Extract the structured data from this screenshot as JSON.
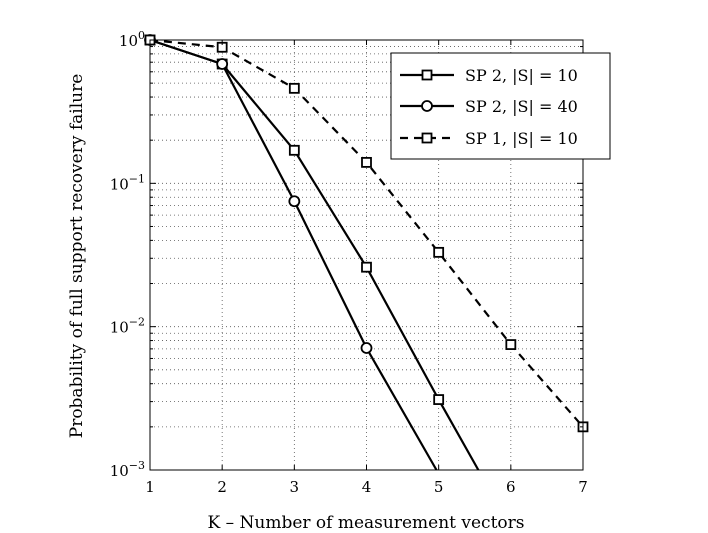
{
  "chart_data": {
    "type": "line",
    "xlabel": "K – Number of measurement vectors",
    "ylabel": "Probability of full support recovery failure",
    "xlim": [
      1,
      7
    ],
    "ylim": [
      0.001,
      1
    ],
    "yscale": "log",
    "grid": true,
    "legend_position": "top-right",
    "x_ticks": [
      1,
      2,
      3,
      4,
      5,
      6,
      7
    ],
    "y_ticks": [
      {
        "base": "10",
        "exp": "0",
        "value": 1
      },
      {
        "base": "10",
        "exp": "−1",
        "value": 0.1
      },
      {
        "base": "10",
        "exp": "−2",
        "value": 0.01
      },
      {
        "base": "10",
        "exp": "−3",
        "value": 0.001
      }
    ],
    "series": [
      {
        "name": "SP 2, |S| = 10",
        "line": "solid",
        "marker": "square",
        "x": [
          1,
          2,
          3,
          4,
          5,
          5.55
        ],
        "y": [
          1.0,
          0.68,
          0.17,
          0.026,
          0.0031,
          0.001
        ],
        "marker_points": 5
      },
      {
        "name": "SP 2, |S| = 40",
        "line": "solid",
        "marker": "circle",
        "x": [
          1,
          2,
          3,
          4,
          4.97
        ],
        "y": [
          1.0,
          0.68,
          0.075,
          0.0071,
          0.001
        ],
        "marker_points": 4
      },
      {
        "name": "SP 1, |S| = 10",
        "line": "dashed",
        "marker": "square",
        "x": [
          1,
          2,
          3,
          4,
          5,
          6,
          7
        ],
        "y": [
          1.0,
          0.89,
          0.46,
          0.14,
          0.033,
          0.0075,
          0.002
        ],
        "marker_points": 7
      }
    ]
  }
}
